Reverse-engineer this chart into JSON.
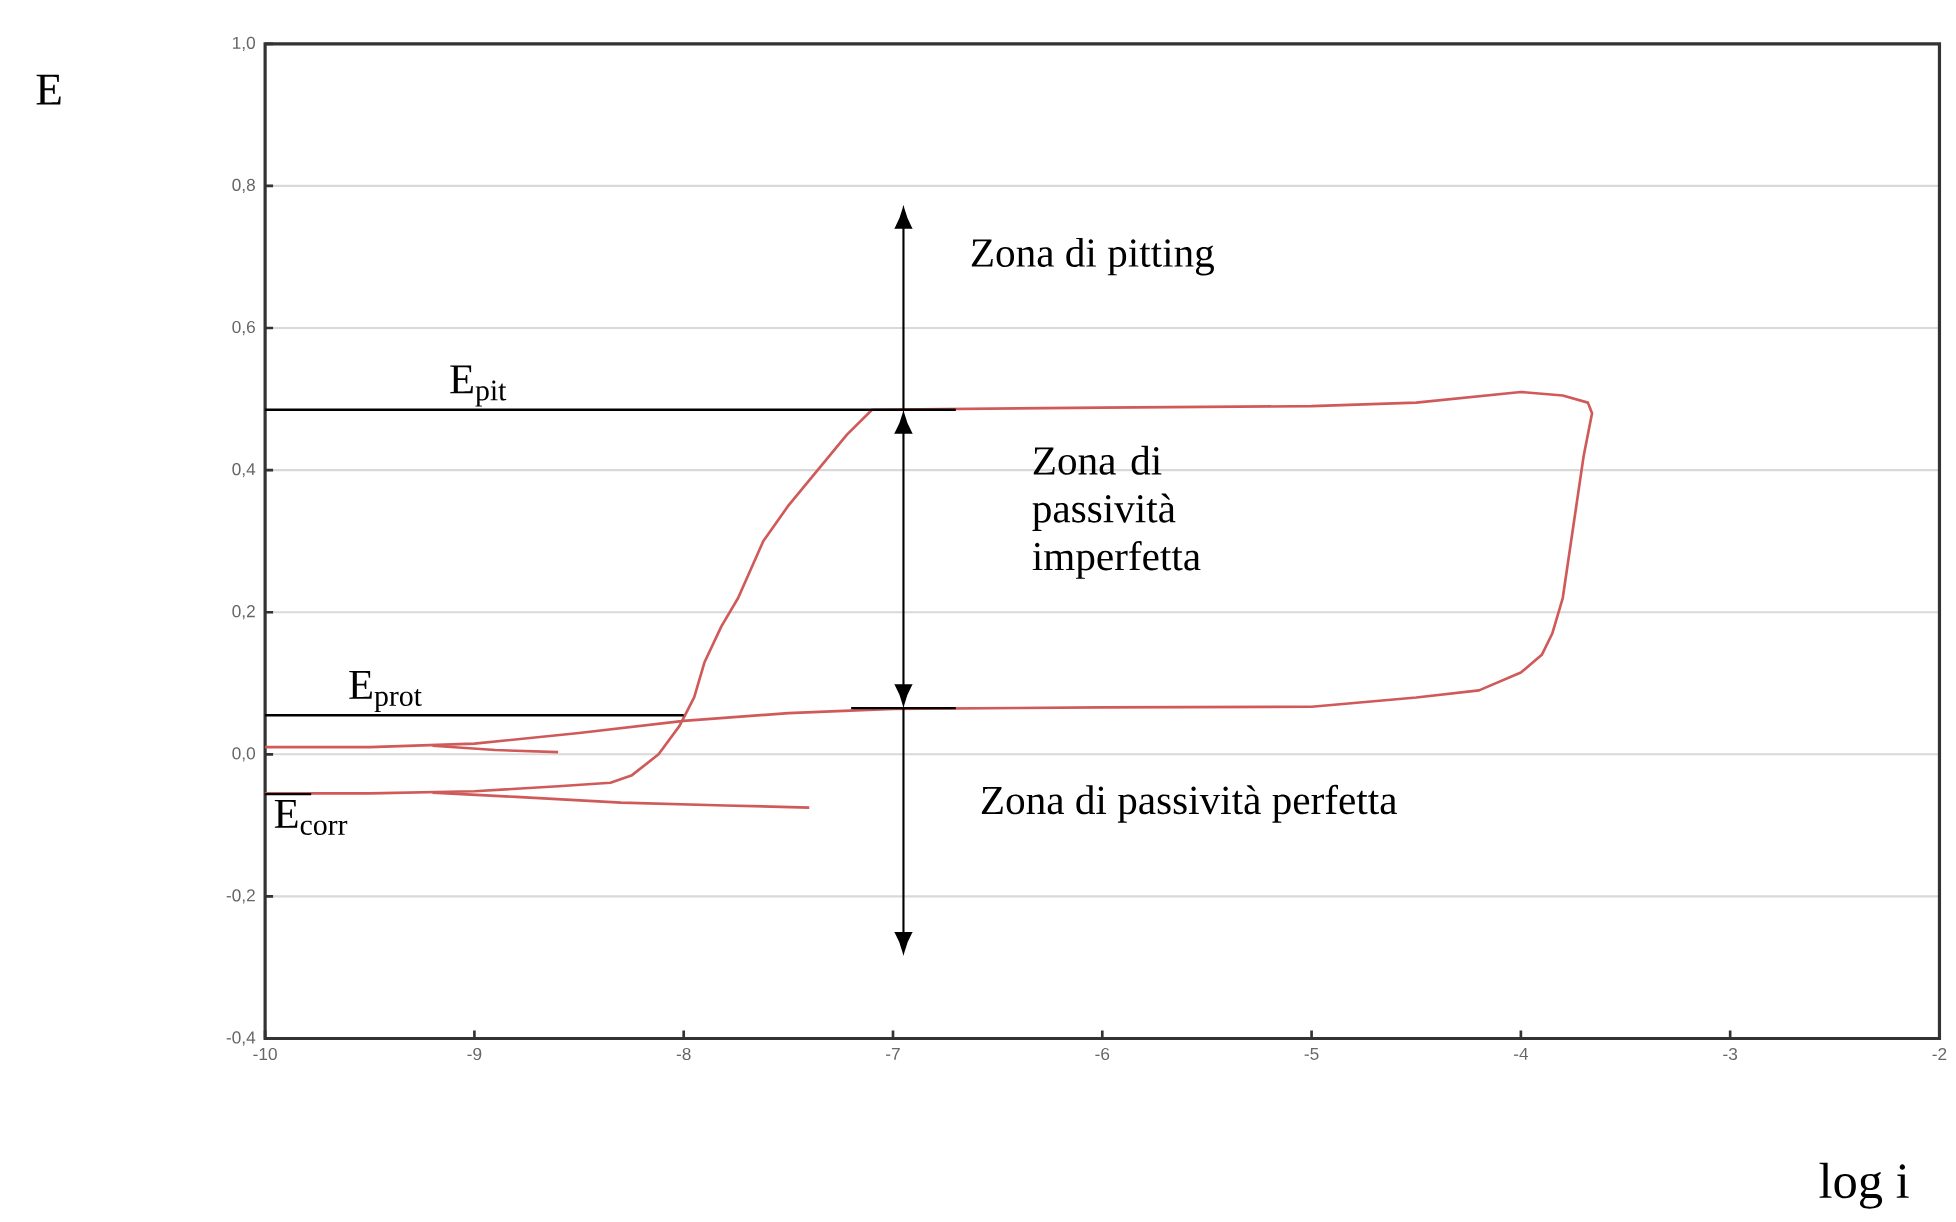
{
  "chart_data": {
    "type": "line",
    "xlabel": "log i",
    "ylabel": "E",
    "xlim": [
      -10,
      -2
    ],
    "ylim": [
      -0.4,
      1.0
    ],
    "xticks": [
      -10,
      -9,
      -8,
      -7,
      -6,
      -5,
      -4,
      -3,
      -2
    ],
    "yticks": [
      {
        "value": -0.4,
        "label": "-0,4"
      },
      {
        "value": -0.2,
        "label": "-0,2"
      },
      {
        "value": 0.0,
        "label": "0,0"
      },
      {
        "value": 0.2,
        "label": "0,2"
      },
      {
        "value": 0.4,
        "label": "0,4"
      },
      {
        "value": 0.6,
        "label": "0,6"
      },
      {
        "value": 0.8,
        "label": "0,8"
      },
      {
        "value": 1.0,
        "label": "1,0"
      }
    ],
    "grid": "y",
    "marker": "none",
    "series": [
      {
        "type": "line",
        "color": "#d05a5a",
        "x": [
          -10,
          -9.5,
          -9.0,
          -8.6,
          -8.35,
          -8.25,
          -8.12,
          -8.02,
          -7.95,
          -7.9,
          -7.82,
          -7.74,
          -7.62,
          -7.5,
          -7.36,
          -7.22,
          -7.1,
          -6.0,
          -5.0,
          -4.5,
          -4.0,
          -3.8,
          -3.68,
          -3.66,
          -3.7,
          -3.75,
          -3.8,
          -3.85,
          -3.9,
          -4.0,
          -4.2,
          -4.5,
          -5.0,
          -6.0,
          -7.0,
          -7.5,
          -8.0,
          -8.5,
          -9.0,
          -9.5,
          -10
        ],
        "values": [
          -0.055,
          -0.055,
          -0.052,
          -0.045,
          -0.04,
          -0.03,
          0.0,
          0.04,
          0.08,
          0.13,
          0.18,
          0.22,
          0.3,
          0.35,
          0.4,
          0.45,
          0.485,
          0.488,
          0.49,
          0.495,
          0.51,
          0.505,
          0.495,
          0.48,
          0.42,
          0.32,
          0.22,
          0.17,
          0.14,
          0.115,
          0.09,
          0.08,
          0.067,
          0.066,
          0.064,
          0.058,
          0.047,
          0.03,
          0.015,
          0.01,
          0.01
        ]
      },
      {
        "type": "line",
        "color": "#d05a5a",
        "x": [
          -9.2,
          -8.8,
          -8.3,
          -7.8,
          -7.4
        ],
        "values": [
          -0.054,
          -0.06,
          -0.068,
          -0.072,
          -0.075
        ]
      },
      {
        "type": "line",
        "color": "#d05a5a",
        "x": [
          -9.2,
          -8.9,
          -8.6
        ],
        "values": [
          0.012,
          0.006,
          0.003
        ]
      },
      {
        "name": "E$_{pit}$",
        "color": "#000000",
        "x": [
          -10,
          -6.7
        ],
        "values": [
          0.485,
          0.485
        ]
      },
      {
        "name": "E$_{prot}$",
        "color": "#000000",
        "x": [
          -10,
          -8.0
        ],
        "values": [
          0.055,
          0.055
        ]
      },
      {
        "color": "#000000",
        "x": [
          -7.2,
          -6.7
        ],
        "values": [
          0.065,
          0.065
        ]
      },
      {
        "name": "E$_{corr}$",
        "color": "#000000",
        "x": [
          -10,
          -9.78
        ],
        "values": [
          -0.056,
          -0.056
        ]
      }
    ],
    "annotations": [
      "Zona di pitting",
      "Zona di passività imperfetta",
      "Zona di passività perfetta"
    ]
  }
}
